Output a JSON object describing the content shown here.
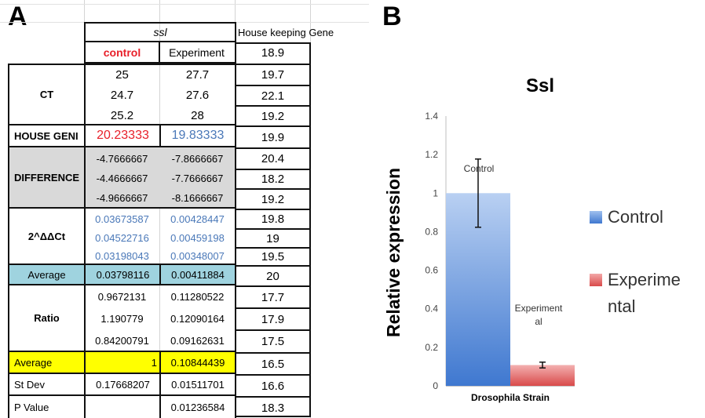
{
  "panels": {
    "a": "A",
    "b": "B"
  },
  "table": {
    "ssl_header": "ssl",
    "hk_header": "House keeping Gene",
    "control_header": "control",
    "experiment_header": "Experiment",
    "row_labels": {
      "ct": "CT",
      "house_gene": "HOUSE GENI",
      "difference": "DIFFERENCE",
      "ddct": "2^ΔΔCt",
      "average1": "Average",
      "ratio": "Ratio",
      "average2": "Average",
      "stdev": "St Dev",
      "pvalue": "P Value"
    },
    "ct_control": [
      "25",
      "24.7",
      "25.2"
    ],
    "ct_experiment": [
      "27.7",
      "27.6",
      "28"
    ],
    "house_gene_control": "20.23333",
    "house_gene_experiment": "19.83333",
    "difference_control": [
      "-4.7666667",
      "-4.4666667",
      "-4.9666667"
    ],
    "difference_experiment": [
      "-7.8666667",
      "-7.7666667",
      "-8.1666667"
    ],
    "ddct_control": [
      "0.03673587",
      "0.04522716",
      "0.03198043"
    ],
    "ddct_experiment": [
      "0.00428447",
      "0.00459198",
      "0.00348007"
    ],
    "average1_control": "0.03798116",
    "average1_experiment": "0.00411884",
    "ratio_control": [
      "0.9672131",
      "1.190779",
      "0.84200791"
    ],
    "ratio_experiment": [
      "0.11280522",
      "0.12090164",
      "0.09162631"
    ],
    "average2_control": "1",
    "average2_experiment": "0.10844439",
    "stdev_control": "0.17668207",
    "stdev_experiment": "0.01511701",
    "pvalue_control": "",
    "pvalue_experiment": "0.01236584",
    "housekeeping_values": [
      "18.9",
      "19.7",
      "22.1",
      "19.2",
      "19.9",
      "20.4",
      "18.2",
      "19.2",
      "19.8",
      "19",
      "19.5",
      "20",
      "17.7",
      "17.9",
      "17.5",
      "16.5",
      "16.6",
      "18.3"
    ],
    "colors": {
      "gray_fill": "#d9d9d9",
      "teal_fill": "#9fd3df",
      "yellow_fill": "#ffff00",
      "red_text": "#e8202a",
      "blue_text": "#4a78b8"
    }
  },
  "chart_data": {
    "type": "bar",
    "title": "Ssl",
    "xlabel": "Drosophila Strain",
    "ylabel": "Relative expression",
    "ylim": [
      0,
      1.4
    ],
    "yticks": [
      "0",
      "0.2",
      "0.4",
      "0.6",
      "0.8",
      "1",
      "1.2",
      "1.4"
    ],
    "series": [
      {
        "name": "Control",
        "value": 1.0,
        "error": 0.177,
        "bar_label": "Control",
        "color": "#4f86d6"
      },
      {
        "name": "Experimental",
        "value": 0.108,
        "error": 0.015,
        "bar_label": "Experiment al",
        "color": "#e05a5a"
      }
    ],
    "legend": {
      "placement": "right",
      "entries": [
        "Control",
        "Experime ntal"
      ]
    }
  }
}
